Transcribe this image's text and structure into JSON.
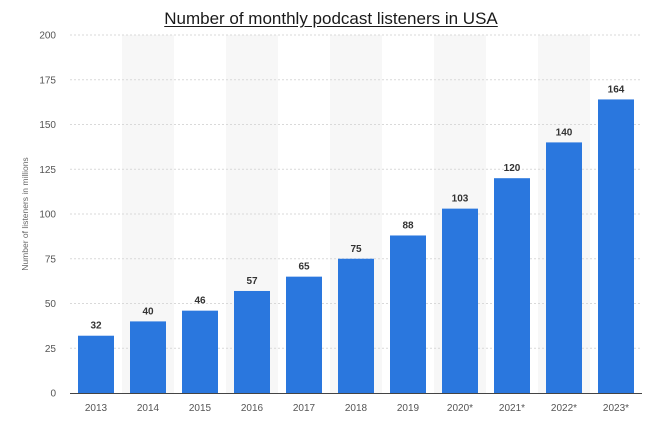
{
  "chart_data": {
    "type": "bar",
    "title": "Number of monthly podcast listeners in USA",
    "xlabel": "",
    "ylabel": "Number of listeners in millions",
    "categories": [
      "2013",
      "2014",
      "2015",
      "2016",
      "2017",
      "2018",
      "2019",
      "2020*",
      "2021*",
      "2022*",
      "2023*"
    ],
    "values": [
      32,
      40,
      46,
      57,
      65,
      75,
      88,
      103,
      120,
      140,
      164
    ],
    "data_labels": [
      "32",
      "40",
      "46",
      "57",
      "65",
      "75",
      "88",
      "103",
      "120",
      "140",
      "164"
    ],
    "ylim": [
      0,
      200
    ],
    "yticks": [
      "0",
      "25",
      "50",
      "75",
      "100",
      "125",
      "150",
      "175",
      "200"
    ],
    "grid": "horizontal dashed",
    "legend": "none",
    "bar_color": "#2a77de",
    "band_color": "#f7f7f7"
  }
}
